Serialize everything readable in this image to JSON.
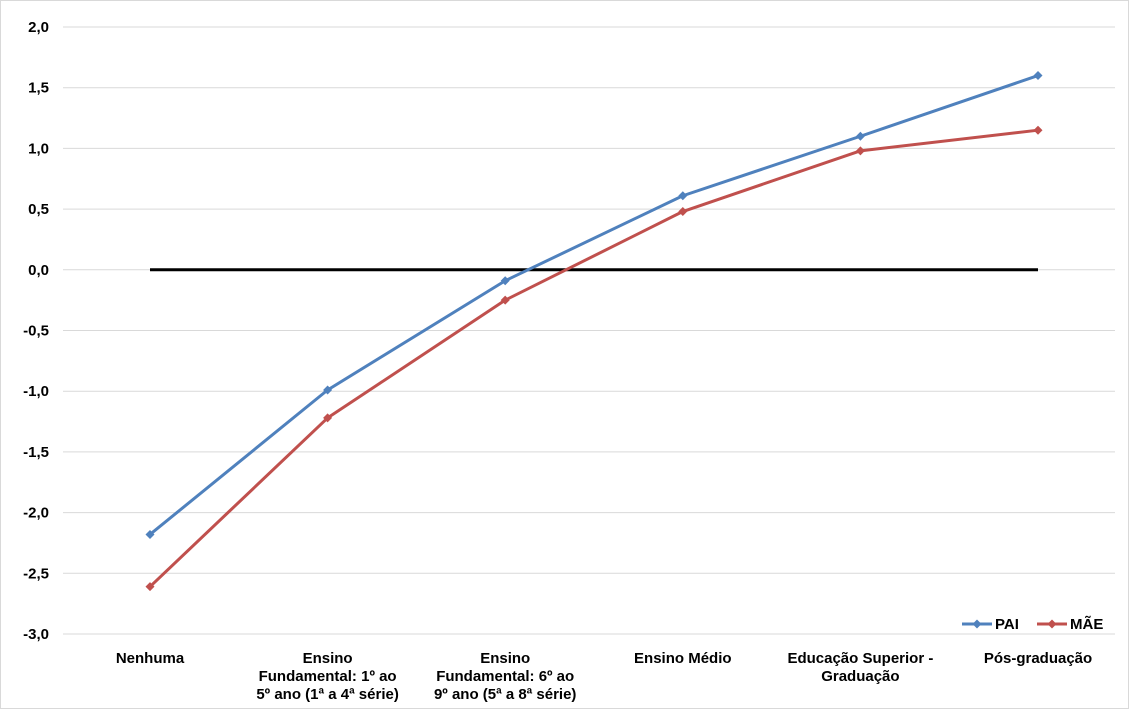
{
  "chart_data": {
    "type": "line",
    "title": "",
    "xlabel": "",
    "ylabel": "",
    "categories": [
      [
        "Nenhuma"
      ],
      [
        "Ensino",
        "Fundamental: 1º ao",
        "5º ano (1ª a 4ª série)"
      ],
      [
        "Ensino",
        "Fundamental: 6º ao",
        "9º ano (5ª a 8ª série)"
      ],
      [
        "Ensino Médio"
      ],
      [
        "Educação Superior -",
        "Graduação"
      ],
      [
        "Pós-graduação"
      ]
    ],
    "series": [
      {
        "name": "PAI",
        "color": "#4f81bd",
        "values": [
          -2.18,
          -0.99,
          -0.09,
          0.61,
          1.1,
          1.6
        ]
      },
      {
        "name": "MÃE",
        "color": "#c0504d",
        "values": [
          -2.61,
          -1.22,
          -0.25,
          0.48,
          0.98,
          1.15
        ]
      }
    ],
    "reference_line": {
      "value": 0.0,
      "color": "#000000"
    },
    "ylim": [
      -3.0,
      2.0
    ],
    "yticks": [
      "2,0",
      "1,5",
      "1,0",
      "0,5",
      "0,0",
      "-0,5",
      "-1,0",
      "-1,5",
      "-2,0",
      "-2,5",
      "-3,0"
    ],
    "grid": true,
    "legend_position": "bottom-right"
  }
}
